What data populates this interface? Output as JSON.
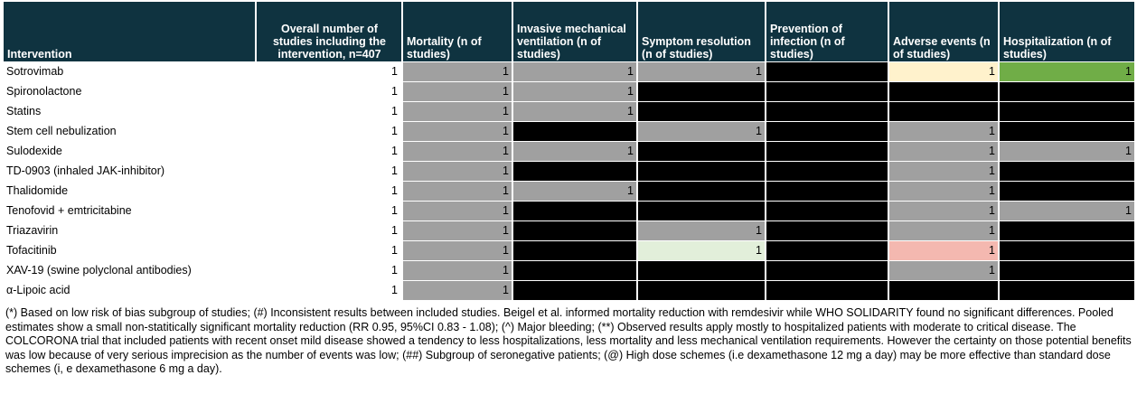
{
  "headers": [
    {
      "label": "Intervention"
    },
    {
      "label": "Overall number of studies including the intervention, n=407"
    },
    {
      "label": "Mortality (n of studies)"
    },
    {
      "label": "Invasive mechanical ventilation (n of studies)"
    },
    {
      "label": "Symptom resolution (n of studies)"
    },
    {
      "label": "Prevention of infection (n of studies)"
    },
    {
      "label": "Adverse events (n of studies)"
    },
    {
      "label": "Hospitalization      (n of studies)"
    }
  ],
  "colors": {
    "header_bg": "#0f3340",
    "gray": "#a0a0a0",
    "black": "#000000",
    "yellow": "#fff2cc",
    "green": "#70ad47",
    "lightgreen": "#e2efda",
    "pink": "#f4b8b0"
  },
  "rows": [
    {
      "name": "Sotrovimab",
      "count": "1",
      "cells": [
        {
          "color": "gray",
          "value": "1"
        },
        {
          "color": "gray",
          "value": "1"
        },
        {
          "color": "gray",
          "value": "1"
        },
        {
          "color": "black",
          "value": ""
        },
        {
          "color": "yellow",
          "value": "1"
        },
        {
          "color": "green",
          "value": "1"
        }
      ]
    },
    {
      "name": "Spironolactone",
      "count": "1",
      "cells": [
        {
          "color": "gray",
          "value": "1"
        },
        {
          "color": "gray",
          "value": "1"
        },
        {
          "color": "black",
          "value": ""
        },
        {
          "color": "black",
          "value": ""
        },
        {
          "color": "black",
          "value": ""
        },
        {
          "color": "black",
          "value": ""
        }
      ]
    },
    {
      "name": "Statins",
      "count": "1",
      "cells": [
        {
          "color": "gray",
          "value": "1"
        },
        {
          "color": "gray",
          "value": "1"
        },
        {
          "color": "black",
          "value": ""
        },
        {
          "color": "black",
          "value": ""
        },
        {
          "color": "black",
          "value": ""
        },
        {
          "color": "black",
          "value": ""
        }
      ]
    },
    {
      "name": "Stem cell nebulization",
      "count": "1",
      "cells": [
        {
          "color": "gray",
          "value": "1"
        },
        {
          "color": "black",
          "value": ""
        },
        {
          "color": "gray",
          "value": "1"
        },
        {
          "color": "black",
          "value": ""
        },
        {
          "color": "gray",
          "value": "1"
        },
        {
          "color": "black",
          "value": ""
        }
      ]
    },
    {
      "name": "Sulodexide",
      "count": "1",
      "cells": [
        {
          "color": "gray",
          "value": "1"
        },
        {
          "color": "gray",
          "value": "1"
        },
        {
          "color": "black",
          "value": ""
        },
        {
          "color": "black",
          "value": ""
        },
        {
          "color": "gray",
          "value": "1"
        },
        {
          "color": "gray",
          "value": "1"
        }
      ]
    },
    {
      "name": "TD-0903 (inhaled JAK-inhibitor)",
      "count": "1",
      "cells": [
        {
          "color": "gray",
          "value": "1"
        },
        {
          "color": "black",
          "value": ""
        },
        {
          "color": "black",
          "value": ""
        },
        {
          "color": "black",
          "value": ""
        },
        {
          "color": "gray",
          "value": "1"
        },
        {
          "color": "black",
          "value": ""
        }
      ]
    },
    {
      "name": "Thalidomide",
      "count": "1",
      "cells": [
        {
          "color": "gray",
          "value": "1"
        },
        {
          "color": "gray",
          "value": "1"
        },
        {
          "color": "black",
          "value": ""
        },
        {
          "color": "black",
          "value": ""
        },
        {
          "color": "gray",
          "value": "1"
        },
        {
          "color": "black",
          "value": ""
        }
      ]
    },
    {
      "name": "Tenofovid + emtricitabine",
      "count": "1",
      "cells": [
        {
          "color": "gray",
          "value": "1"
        },
        {
          "color": "black",
          "value": ""
        },
        {
          "color": "black",
          "value": ""
        },
        {
          "color": "black",
          "value": ""
        },
        {
          "color": "gray",
          "value": "1"
        },
        {
          "color": "gray",
          "value": "1"
        }
      ]
    },
    {
      "name": "Triazavirin",
      "count": "1",
      "cells": [
        {
          "color": "gray",
          "value": "1"
        },
        {
          "color": "black",
          "value": ""
        },
        {
          "color": "gray",
          "value": "1"
        },
        {
          "color": "black",
          "value": ""
        },
        {
          "color": "gray",
          "value": "1"
        },
        {
          "color": "black",
          "value": ""
        }
      ]
    },
    {
      "name": "Tofacitinib",
      "count": "1",
      "cells": [
        {
          "color": "gray",
          "value": "1"
        },
        {
          "color": "black",
          "value": ""
        },
        {
          "color": "lightgreen",
          "value": "1"
        },
        {
          "color": "black",
          "value": ""
        },
        {
          "color": "pink",
          "value": "1"
        },
        {
          "color": "black",
          "value": ""
        }
      ]
    },
    {
      "name": "XAV-19 (swine polyclonal antibodies)",
      "count": "1",
      "cells": [
        {
          "color": "gray",
          "value": "1"
        },
        {
          "color": "black",
          "value": ""
        },
        {
          "color": "black",
          "value": ""
        },
        {
          "color": "black",
          "value": ""
        },
        {
          "color": "gray",
          "value": "1"
        },
        {
          "color": "black",
          "value": ""
        }
      ]
    },
    {
      "name": "α-Lipoic acid",
      "count": "1",
      "cells": [
        {
          "color": "gray",
          "value": "1"
        },
        {
          "color": "black",
          "value": ""
        },
        {
          "color": "black",
          "value": ""
        },
        {
          "color": "black",
          "value": ""
        },
        {
          "color": "black",
          "value": ""
        },
        {
          "color": "black",
          "value": ""
        }
      ]
    }
  ],
  "footnote": "(*) Based on low risk of bias subgroup of studies; (#) Inconsistent results between included studies. Beigel et al. informed mortality reduction with remdesivir while WHO SOLIDARITY found no significant differences. Pooled estimates show a small non-statitically significant mortality reduction (RR 0.95, 95%CI 0.83 - 1.08); (^) Major bleeding; (**) Observed results apply mostly to hospitalized patients with moderate to critical disease. The COLCORONA trial that included patients with recent onset mild disease showed a tendency to less hospitalizations, less mortality and less mechanical ventilation requirements. However the certainty on those potential benefits was low because of very serious imprecision as the number of events was low; (##) Subgroup of seronegative patients; (@) High dose schemes (i.e dexamethasone 12 mg a day) may be more effective than standard dose schemes (i, e dexamethasone 6 mg a day)."
}
